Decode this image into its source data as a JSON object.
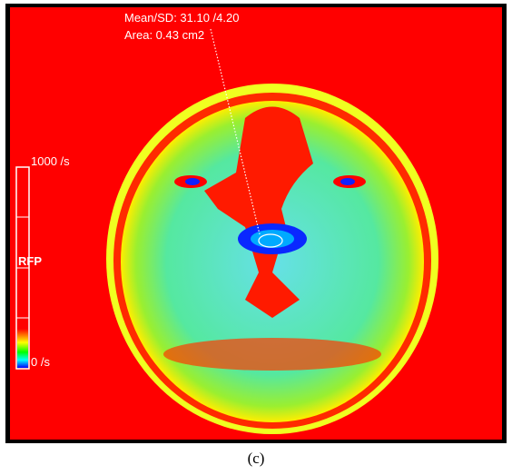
{
  "annotation": {
    "mean_sd": "Mean/SD: 31.10 /4.20",
    "area": "Area: 0.43 cm2"
  },
  "color_scale": {
    "max_label": "1000 /s",
    "name": "RFP",
    "min_label": "0 /s"
  },
  "caption": "(c)"
}
